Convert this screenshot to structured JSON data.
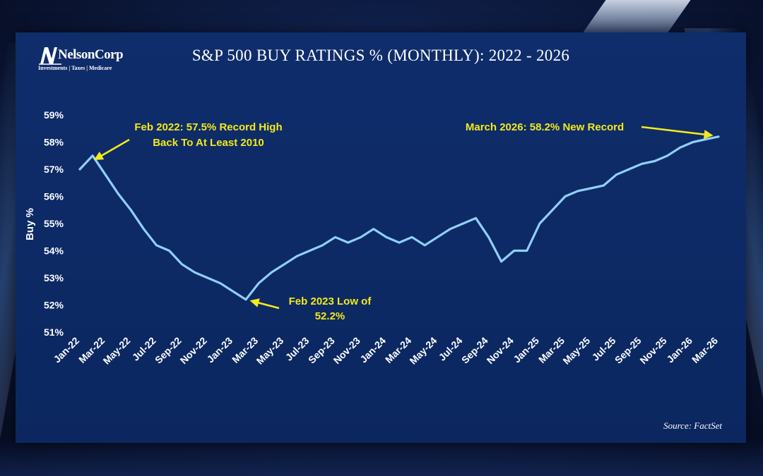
{
  "header": {
    "logo_name": "NelsonCorp",
    "logo_tagline": "Investments | Taxes | Medicare",
    "title": "S&P 500 BUY RATINGS % (MONTHLY): 2022 - 2026"
  },
  "footer": {
    "source": "Source: FactSet"
  },
  "colors": {
    "line": "#8fd0f7",
    "annotation": "#f4ea1a",
    "panel": "#0f2d6b",
    "text": "#ffffff"
  },
  "chart_data": {
    "type": "line",
    "title": "S&P 500 BUY RATINGS % (MONTHLY): 2022 - 2026",
    "xlabel": "",
    "ylabel": "Buy %",
    "ylim": [
      51,
      59
    ],
    "yticks": [
      "51%",
      "52%",
      "53%",
      "54%",
      "55%",
      "56%",
      "57%",
      "58%",
      "59%"
    ],
    "grid": false,
    "legend": "none",
    "x_tick_labels": [
      "Jan-22",
      "Mar-22",
      "May-22",
      "Jul-22",
      "Sep-22",
      "Nov-22",
      "Jan-23",
      "Mar-23",
      "May-23",
      "Jul-23",
      "Sep-23",
      "Nov-23",
      "Jan-24",
      "Mar-24",
      "May-24",
      "Jul-24",
      "Sep-24",
      "Nov-24",
      "Jan-25",
      "Mar-25",
      "May-25",
      "Jul-25",
      "Sep-25",
      "Nov-25",
      "Jan-26",
      "Mar-26"
    ],
    "x": [
      "Jan-22",
      "Feb-22",
      "Mar-22",
      "Apr-22",
      "May-22",
      "Jun-22",
      "Jul-22",
      "Aug-22",
      "Sep-22",
      "Oct-22",
      "Nov-22",
      "Dec-22",
      "Jan-23",
      "Feb-23",
      "Mar-23",
      "Apr-23",
      "May-23",
      "Jun-23",
      "Jul-23",
      "Aug-23",
      "Sep-23",
      "Oct-23",
      "Nov-23",
      "Dec-23",
      "Jan-24",
      "Feb-24",
      "Mar-24",
      "Apr-24",
      "May-24",
      "Jun-24",
      "Jul-24",
      "Aug-24",
      "Sep-24",
      "Oct-24",
      "Nov-24",
      "Dec-24",
      "Jan-25",
      "Feb-25",
      "Mar-25",
      "Apr-25",
      "May-25",
      "Jun-25",
      "Jul-25",
      "Aug-25",
      "Sep-25",
      "Oct-25",
      "Nov-25",
      "Dec-25",
      "Jan-26",
      "Feb-26",
      "Mar-26"
    ],
    "series": [
      {
        "values": [
          57.0,
          57.5,
          56.8,
          56.1,
          55.5,
          54.8,
          54.2,
          54.0,
          53.5,
          53.2,
          53.0,
          52.8,
          52.5,
          52.2,
          52.8,
          53.2,
          53.5,
          53.8,
          54.0,
          54.2,
          54.5,
          54.3,
          54.5,
          54.8,
          54.5,
          54.3,
          54.5,
          54.2,
          54.5,
          54.8,
          55.0,
          55.2,
          54.5,
          53.6,
          54.0,
          54.0,
          55.0,
          55.5,
          56.0,
          56.2,
          56.3,
          56.4,
          56.8,
          57.0,
          57.2,
          57.3,
          57.5,
          57.8,
          58.0,
          58.1,
          58.2
        ]
      }
    ],
    "annotations": [
      {
        "lines": [
          "Feb 2022: 57.5% Record High",
          "Back To At Least 2010"
        ],
        "x": "Feb-22",
        "y": 57.5
      },
      {
        "lines": [
          "Feb 2023 Low of",
          "52.2%"
        ],
        "x": "Feb-23",
        "y": 52.2
      },
      {
        "lines": [
          "March 2026: 58.2% New Record"
        ],
        "x": "Mar-26",
        "y": 58.2
      }
    ]
  }
}
